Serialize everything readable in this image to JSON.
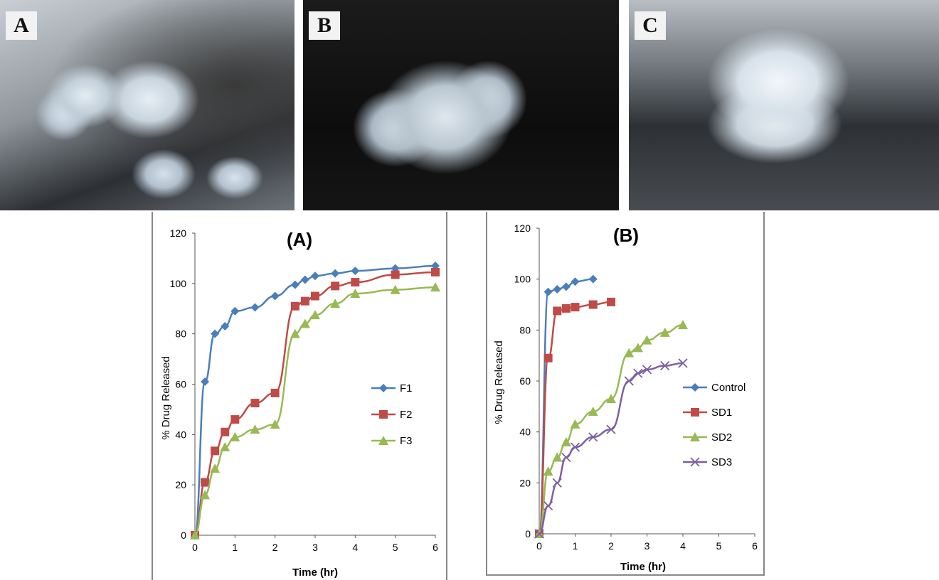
{
  "photos": {
    "a_label": "A",
    "b_label": "B",
    "c_label": "C"
  },
  "chart_data": [
    {
      "type": "line",
      "title": "(A)",
      "xlabel": "Time (hr)",
      "ylabel": "% Drug Released",
      "xlim": [
        0,
        6
      ],
      "ylim": [
        0,
        120
      ],
      "xticks": [
        0,
        1,
        2,
        3,
        4,
        5,
        6
      ],
      "yticks": [
        0,
        20,
        40,
        60,
        80,
        100,
        120
      ],
      "grid": false,
      "legend_position": "right",
      "series": [
        {
          "name": "F1",
          "color": "#4a7ebb",
          "marker": "diamond",
          "x": [
            0,
            0.25,
            0.5,
            0.75,
            1,
            1.5,
            2,
            2.5,
            2.75,
            3,
            3.5,
            4,
            5,
            6
          ],
          "y": [
            0,
            61,
            80,
            83,
            89,
            90.5,
            95,
            99.5,
            101.5,
            103,
            104,
            105,
            106,
            107
          ]
        },
        {
          "name": "F2",
          "color": "#be4b48",
          "marker": "square",
          "x": [
            0,
            0.25,
            0.5,
            0.75,
            1,
            1.5,
            2,
            2.5,
            2.75,
            3,
            3.5,
            4,
            5,
            6
          ],
          "y": [
            0,
            21,
            33.5,
            41,
            46,
            52.5,
            56.5,
            91,
            93,
            95,
            99,
            100.5,
            103.5,
            104.5
          ]
        },
        {
          "name": "F3",
          "color": "#98b954",
          "marker": "triangle",
          "x": [
            0,
            0.25,
            0.5,
            0.75,
            1,
            1.5,
            2,
            2.5,
            2.75,
            3,
            3.5,
            4,
            5,
            6
          ],
          "y": [
            0,
            16,
            26.5,
            35,
            39,
            42,
            44,
            80,
            84,
            87.5,
            92,
            96,
            97.5,
            98.5
          ]
        }
      ]
    },
    {
      "type": "line",
      "title": "(B)",
      "xlabel": "Time (hr)",
      "ylabel": "% Drug Released",
      "xlim": [
        0,
        6
      ],
      "ylim": [
        0,
        120
      ],
      "xticks": [
        0,
        1,
        2,
        3,
        4,
        5,
        6
      ],
      "yticks": [
        0,
        20,
        40,
        60,
        80,
        100,
        120
      ],
      "grid": false,
      "legend_position": "right",
      "series": [
        {
          "name": "Control",
          "color": "#4a7ebb",
          "marker": "diamond",
          "x": [
            0,
            0.25,
            0.5,
            0.75,
            1,
            1.5
          ],
          "y": [
            0,
            95,
            96,
            97,
            99,
            100
          ]
        },
        {
          "name": "SD1",
          "color": "#be4b48",
          "marker": "square",
          "x": [
            0,
            0.25,
            0.5,
            0.75,
            1,
            1.5,
            2
          ],
          "y": [
            0,
            69,
            87.5,
            88.5,
            89,
            90,
            91
          ]
        },
        {
          "name": "SD2",
          "color": "#98b954",
          "marker": "triangle",
          "x": [
            0,
            0.25,
            0.5,
            0.75,
            1,
            1.5,
            2,
            2.5,
            2.75,
            3,
            3.5,
            4
          ],
          "y": [
            0,
            24.5,
            30,
            36,
            43,
            48,
            53,
            71,
            73,
            76,
            79,
            82
          ]
        },
        {
          "name": "SD3",
          "color": "#7d60a0",
          "marker": "x",
          "x": [
            0,
            0.25,
            0.5,
            0.75,
            1,
            1.5,
            2,
            2.5,
            2.75,
            3,
            3.5,
            4
          ],
          "y": [
            0,
            11,
            20,
            30,
            34,
            38,
            41,
            60,
            63,
            64.5,
            66,
            67
          ]
        }
      ]
    }
  ]
}
